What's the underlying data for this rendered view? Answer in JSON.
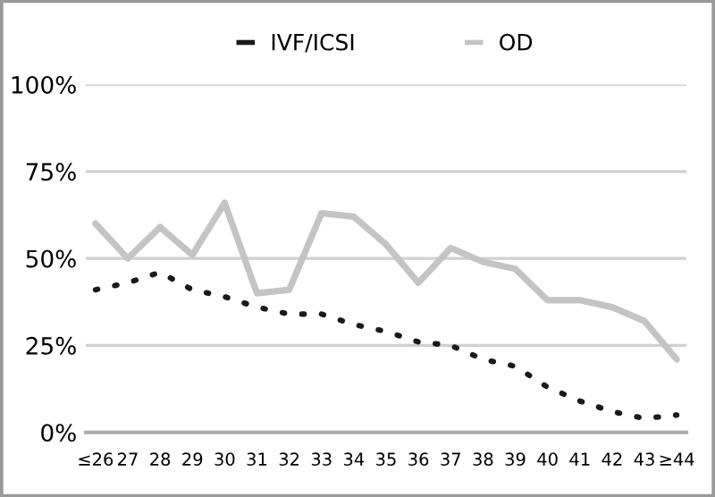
{
  "chart_data": {
    "type": "line",
    "categories": [
      "≤26",
      "27",
      "28",
      "29",
      "30",
      "31",
      "32",
      "33",
      "34",
      "35",
      "36",
      "37",
      "38",
      "39",
      "40",
      "41",
      "42",
      "43",
      "≥44"
    ],
    "series": [
      {
        "name": "IVF/ICSI",
        "color": "#1a1a1a",
        "line_style": "dotted",
        "values": [
          41,
          43,
          46,
          41,
          39,
          36,
          34,
          34,
          31,
          29,
          26,
          25,
          21,
          19,
          13,
          9,
          6,
          4,
          5
        ]
      },
      {
        "name": "OD",
        "color": "#c4c4c4",
        "line_style": "solid",
        "values": [
          60,
          50,
          59,
          51,
          66,
          40,
          41,
          63,
          62,
          54,
          43,
          53,
          49,
          47,
          38,
          38,
          36,
          32,
          21
        ]
      }
    ],
    "ylim": [
      0,
      100
    ],
    "yticks": [
      {
        "value": 0,
        "label": "0%"
      },
      {
        "value": 25,
        "label": "25%"
      },
      {
        "value": 50,
        "label": "50%"
      },
      {
        "value": 75,
        "label": "75%"
      },
      {
        "value": 100,
        "label": "100%"
      }
    ],
    "grid": "y",
    "legend": "top",
    "marker": "none"
  }
}
